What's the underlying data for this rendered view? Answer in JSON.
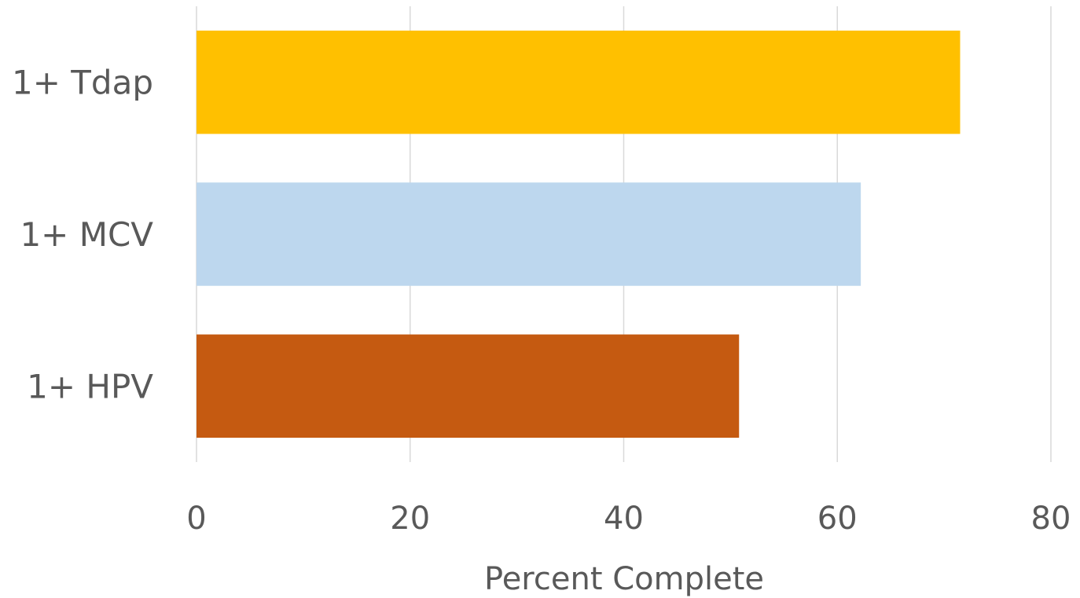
{
  "chart_data": {
    "type": "bar",
    "orientation": "horizontal",
    "categories": [
      "1+ Tdap",
      "1+ MCV",
      "1+ HPV"
    ],
    "values": [
      71.5,
      62.2,
      50.8
    ],
    "colors": [
      "#ffc000",
      "#bdd7ee",
      "#c55a11"
    ],
    "xlabel": "Percent Complete",
    "ylabel": "",
    "xlim": [
      0,
      80
    ],
    "xticks": [
      "0",
      "20",
      "40",
      "60",
      "80"
    ],
    "grid": true,
    "legend": "none"
  }
}
